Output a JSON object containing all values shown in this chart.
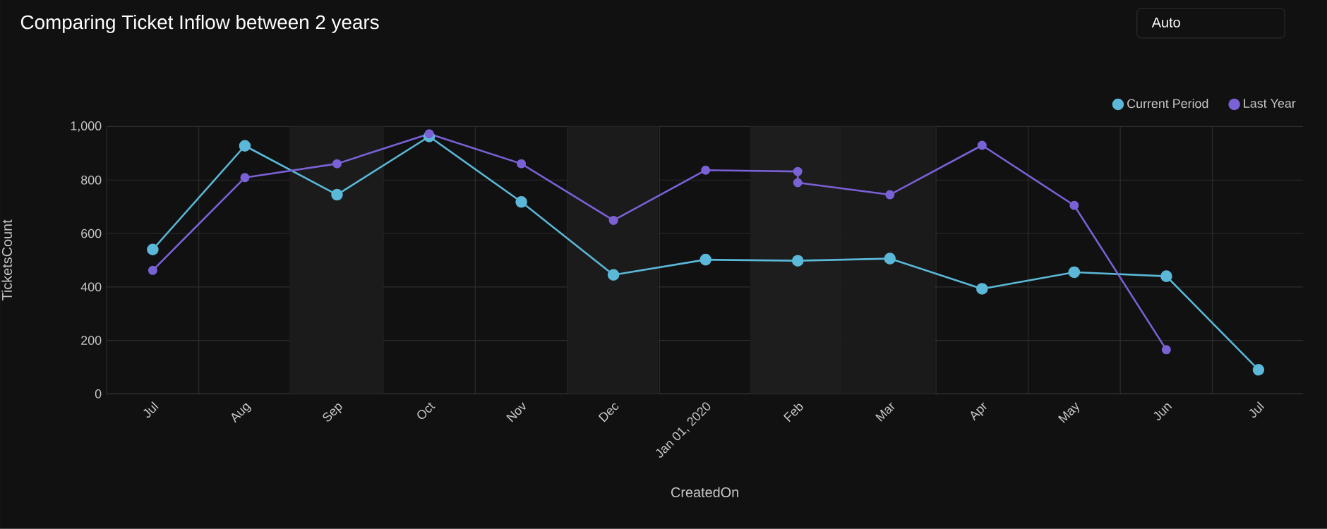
{
  "chart_data": {
    "type": "line",
    "title": "Comparing Ticket Inflow between 2 years",
    "xlabel": "CreatedOn",
    "ylabel": "TicketsCount",
    "annotations": [
      "Auto"
    ],
    "series": [
      {
        "name": "Current Period",
        "color": "#5bb8d8",
        "x": [
          "2019-07",
          "2019-08",
          "2019-09",
          "2019-10",
          "2019-11",
          "2019-12",
          "2020-01",
          "2020-02",
          "2020-03",
          "2020-04",
          "2020-05",
          "2020-06",
          "2020-07"
        ],
        "values": [
          540,
          928,
          745,
          963,
          718,
          445,
          502,
          498,
          506,
          393,
          455,
          440,
          90
        ]
      },
      {
        "name": "Last Year",
        "color": "#7b61d6",
        "x": [
          "2019-07",
          "2019-08",
          "2019-09",
          "2019-10",
          "2019-11",
          "2019-12",
          "2020-01",
          "2020-02",
          "2020-02",
          "2020-03",
          "2020-04",
          "2020-05",
          "2020-06"
        ],
        "values": [
          462,
          809,
          861,
          973,
          861,
          649,
          837,
          832,
          790,
          745,
          930,
          705,
          165
        ]
      }
    ],
    "xlim": [
      "2019-06-16",
      "2020-07-16"
    ],
    "xticks": [
      {
        "value": "2019-07",
        "label": "Jul"
      },
      {
        "value": "2019-08",
        "label": "Aug"
      },
      {
        "value": "2019-09",
        "label": "Sep"
      },
      {
        "value": "2019-10",
        "label": "Oct"
      },
      {
        "value": "2019-11",
        "label": "Nov"
      },
      {
        "value": "2019-12",
        "label": "Dec"
      },
      {
        "value": "2020-01",
        "label": "Jan 01, 2020"
      },
      {
        "value": "2020-02",
        "label": "Feb"
      },
      {
        "value": "2020-03",
        "label": "Mar"
      },
      {
        "value": "2020-04",
        "label": "Apr"
      },
      {
        "value": "2020-05",
        "label": "May"
      },
      {
        "value": "2020-06",
        "label": "Jun"
      },
      {
        "value": "2020-07",
        "label": "Jul"
      }
    ],
    "ylim": [
      0,
      1000
    ],
    "yticks": [
      0,
      200,
      400,
      600,
      800,
      {
        "value": 1000,
        "label": "1,000"
      }
    ],
    "bands": [
      {
        "axis": "x",
        "from": "2019-08-16",
        "to": "2019-09-16",
        "color": "#1b1b1b"
      },
      {
        "axis": "x",
        "from": "2019-11-16",
        "to": "2019-12-16",
        "color": "#1b1b1b"
      },
      {
        "axis": "x",
        "from": "2020-01-16",
        "to": "2020-02-15",
        "color": "#1d1d1d"
      },
      {
        "axis": "x",
        "from": "2020-02-15",
        "to": "2020-03-16",
        "color": "#1a1a1a"
      }
    ],
    "grid": true,
    "legend": "top right",
    "marker": "circle",
    "line_style": "solid"
  }
}
